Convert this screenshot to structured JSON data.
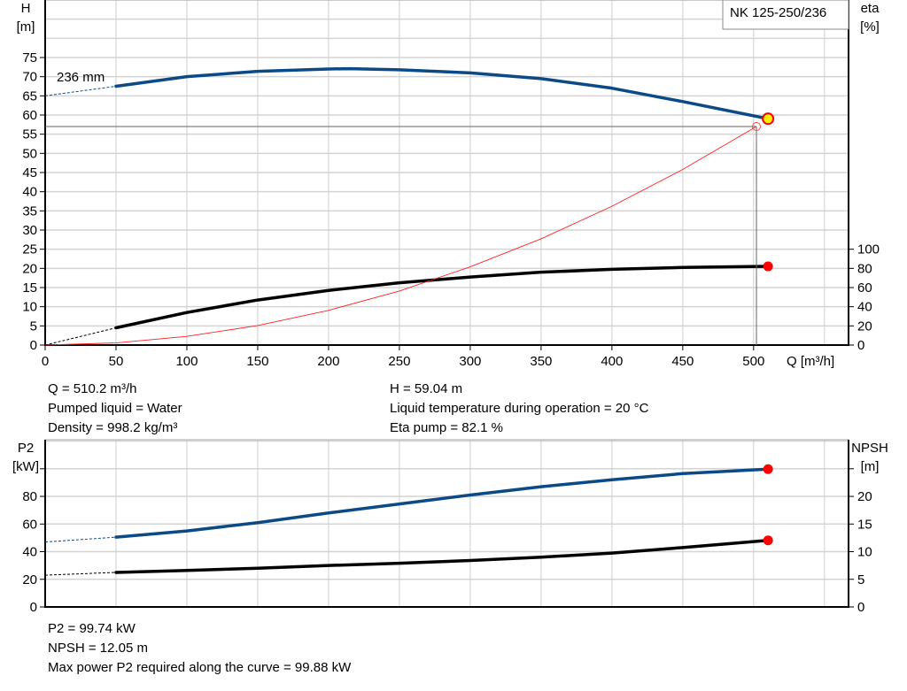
{
  "chart_data": [
    {
      "type": "line",
      "title": "NK 125-250/236",
      "xlabel": "Q [m³/h]",
      "ylabel_left": [
        "H",
        "[m]"
      ],
      "ylabel_right": [
        "eta",
        "[%]"
      ],
      "xlim": [
        0,
        567
      ],
      "xticks": [
        0,
        50,
        100,
        150,
        200,
        250,
        300,
        350,
        400,
        450,
        500
      ],
      "ylim_left": [
        0,
        90
      ],
      "yticks_left": [
        0,
        5,
        10,
        15,
        20,
        25,
        30,
        35,
        40,
        45,
        50,
        55,
        60,
        65,
        70,
        75
      ],
      "ylim_right": [
        0,
        360
      ],
      "yticks_right": [
        0,
        20,
        40,
        60,
        80,
        100
      ],
      "grid": true,
      "curve_label": "236 mm",
      "series": [
        {
          "axis": "left",
          "color": "#0b4a86",
          "x": [
            0,
            50,
            100,
            150,
            200,
            215,
            250,
            300,
            350,
            400,
            450,
            510.2
          ],
          "y": [
            65,
            67.5,
            70,
            71.4,
            72,
            72.1,
            71.8,
            71,
            69.5,
            67,
            63.5,
            59.04
          ],
          "dashed_until": 50
        },
        {
          "axis": "right",
          "color": "#000000",
          "x": [
            0,
            50,
            100,
            150,
            200,
            250,
            300,
            350,
            400,
            450,
            510.2
          ],
          "y": [
            0,
            18,
            34,
            47,
            57,
            65,
            71,
            76,
            79,
            81,
            82.1
          ],
          "dashed_until": 50
        },
        {
          "axis": "left",
          "color": "#ff2020",
          "type": "system",
          "x": [
            0,
            50,
            100,
            150,
            200,
            250,
            300,
            350,
            400,
            450,
            502
          ],
          "y": [
            0,
            0.57,
            2.26,
            5.09,
            9.05,
            14.1,
            20.4,
            27.7,
            36.2,
            45.8,
            57
          ]
        }
      ],
      "duty_point": {
        "Q": 510.2,
        "H": 59.04,
        "eta": 82.1
      },
      "system_point": {
        "Q": 502,
        "H": 57
      }
    },
    {
      "type": "line",
      "xlim": [
        0,
        567
      ],
      "ylabel_left": [
        "P2",
        "[kW]"
      ],
      "ylabel_right": [
        "NPSH",
        "[m]"
      ],
      "ylim_left": [
        0,
        121
      ],
      "yticks_left": [
        0,
        20,
        40,
        60,
        80,
        100
      ],
      "yticklabels_left": [
        "0",
        "20",
        "40",
        "60",
        "80",
        ""
      ],
      "ylim_right": [
        0,
        30.25
      ],
      "yticks_right": [
        0,
        5,
        10,
        15,
        20,
        25
      ],
      "yticklabels_right": [
        "0",
        "5",
        "10",
        "15",
        "20",
        ""
      ],
      "grid": true,
      "series": [
        {
          "axis": "left",
          "color": "#0b4a86",
          "x": [
            0,
            50,
            100,
            150,
            200,
            250,
            300,
            350,
            400,
            450,
            510.2
          ],
          "y": [
            47,
            50.5,
            55,
            61,
            68,
            74.5,
            81,
            87,
            92,
            96.5,
            99.74
          ],
          "dashed_until": 50
        },
        {
          "axis": "right",
          "color": "#000000",
          "x": [
            0,
            50,
            100,
            150,
            200,
            250,
            300,
            350,
            400,
            450,
            510.2
          ],
          "y": [
            5.75,
            6.25,
            6.6,
            7,
            7.5,
            7.9,
            8.4,
            9,
            9.75,
            10.75,
            12.05
          ],
          "dashed_until": 50
        }
      ]
    }
  ],
  "info_top": {
    "q": "Q = 510.2 m³/h",
    "liquid": "Pumped liquid = Water",
    "density": "Density = 998.2 kg/m³",
    "h": "H = 59.04 m",
    "temp": "Liquid temperature during operation = 20 °C",
    "eta": "Eta pump = 82.1 %"
  },
  "info_bottom": {
    "p2": "P2 = 99.74 kW",
    "npsh": "NPSH = 12.05 m",
    "max_power": "Max power P2 required along the curve = 99.88 kW"
  }
}
